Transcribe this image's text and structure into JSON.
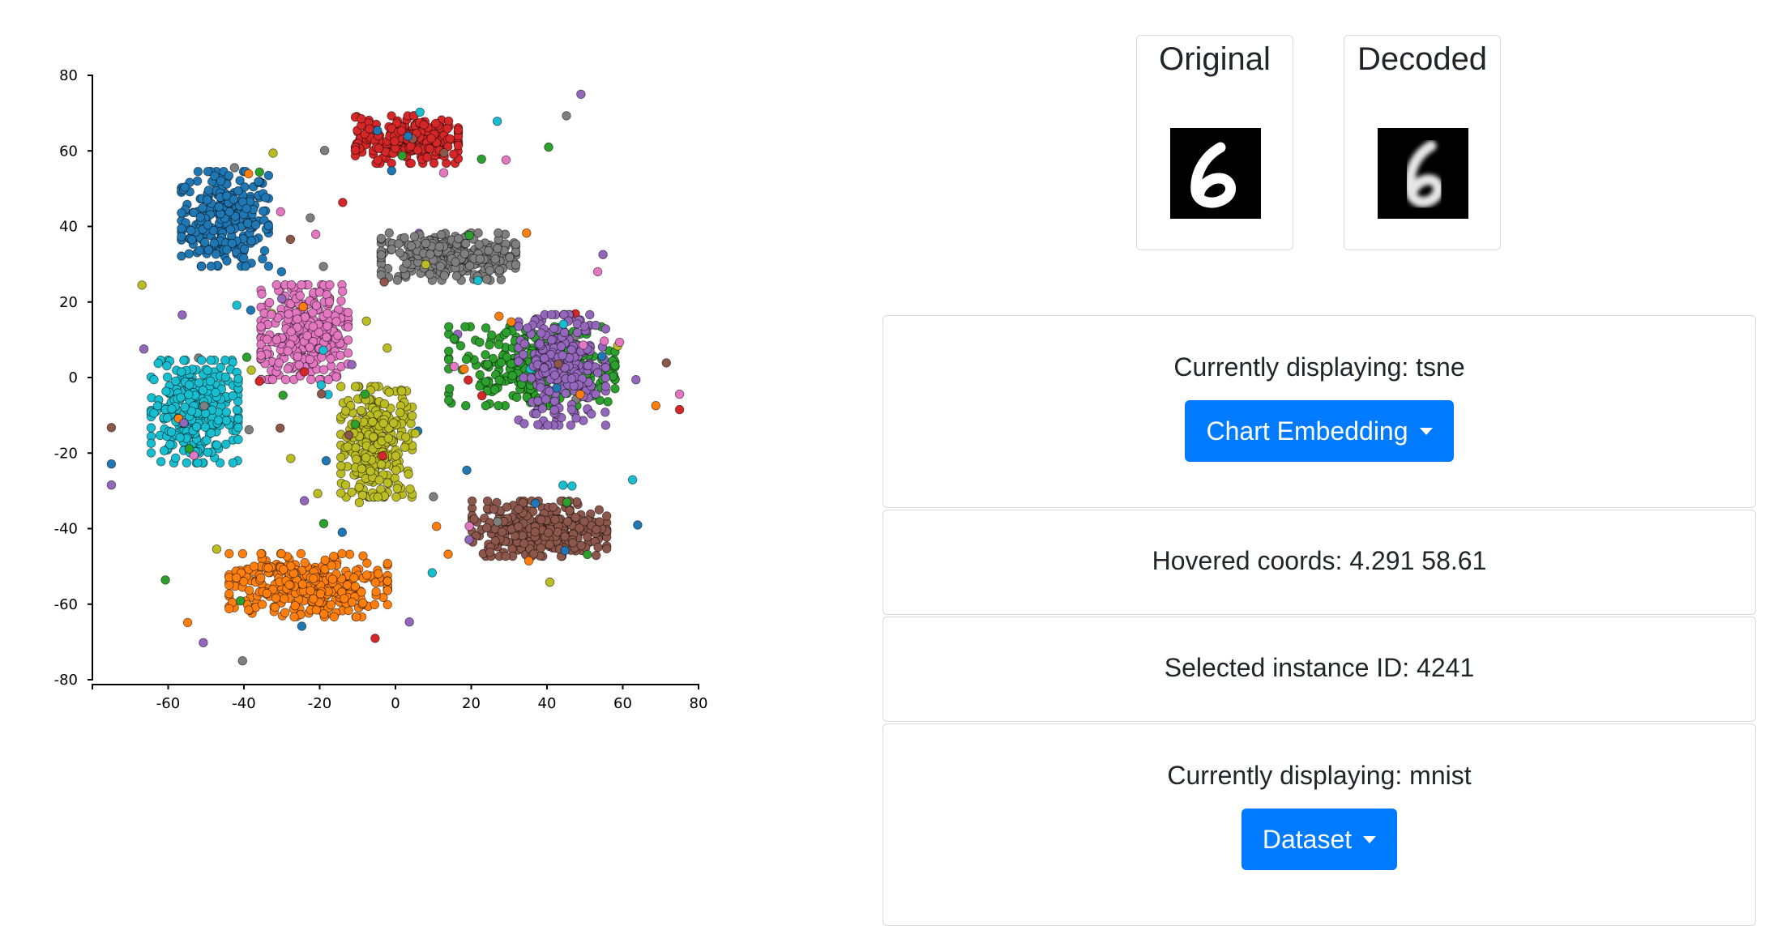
{
  "chart_data": {
    "type": "scatter",
    "title": "",
    "xlabel": "",
    "ylabel": "",
    "xlim": [
      -80,
      80
    ],
    "ylim": [
      -80,
      80
    ],
    "xticks": [
      -60,
      -40,
      -20,
      0,
      20,
      40,
      60,
      80
    ],
    "yticks": [
      80,
      60,
      40,
      20,
      0,
      -20,
      -40,
      -60,
      -80
    ],
    "grid": false,
    "legend": "none",
    "clusters": [
      {
        "color": "#1f77b4",
        "center": [
          -45,
          42
        ],
        "spread": [
          11,
          12
        ],
        "count": 280
      },
      {
        "color": "#d62728",
        "center": [
          3,
          63
        ],
        "spread": [
          13,
          6
        ],
        "count": 260
      },
      {
        "color": "#7f7f7f",
        "center": [
          14,
          32
        ],
        "spread": [
          17,
          6
        ],
        "count": 300
      },
      {
        "color": "#e377c2",
        "center": [
          -24,
          12
        ],
        "spread": [
          11,
          12
        ],
        "count": 320
      },
      {
        "color": "#17becf",
        "center": [
          -53,
          -9
        ],
        "spread": [
          11,
          13
        ],
        "count": 300
      },
      {
        "color": "#bcbd22",
        "center": [
          -5,
          -17
        ],
        "spread": [
          9,
          14
        ],
        "count": 300
      },
      {
        "color": "#2ca02c",
        "center": [
          36,
          3
        ],
        "spread": [
          21,
          10
        ],
        "count": 260
      },
      {
        "color": "#9467bd",
        "center": [
          44,
          2
        ],
        "spread": [
          11,
          14
        ],
        "count": 260
      },
      {
        "color": "#8c564b",
        "center": [
          38,
          -40
        ],
        "spread": [
          17,
          7
        ],
        "count": 300
      },
      {
        "color": "#ff7f0e",
        "center": [
          -23,
          -55
        ],
        "spread": [
          20,
          8
        ],
        "count": 320
      }
    ]
  },
  "images": {
    "original_title": "Original",
    "decoded_title": "Decoded"
  },
  "embedding_panel": {
    "status_text": "Currently displaying: tsne",
    "button_label": "Chart Embedding"
  },
  "hover_panel": {
    "text": "Hovered coords: 4.291 58.61"
  },
  "selection_panel": {
    "text": "Selected instance ID: 4241"
  },
  "dataset_panel": {
    "status_text": "Currently displaying: mnist",
    "button_label": "Dataset"
  }
}
